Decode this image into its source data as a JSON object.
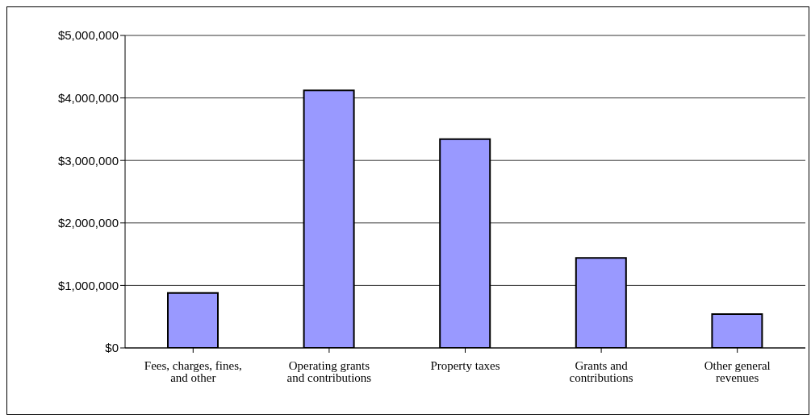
{
  "chart_data": {
    "type": "bar",
    "categories": [
      "Fees, charges, fines, and other",
      "Operating grants and contributions",
      "Property taxes",
      "Grants and contributions",
      "Other general revenues"
    ],
    "values": [
      880000,
      4120000,
      3340000,
      1440000,
      540000
    ],
    "color": "#9999ff",
    "ylim": [
      0,
      5000000
    ],
    "yticks": [
      {
        "value": 0,
        "label": "$0"
      },
      {
        "value": 1000000,
        "label": "$1,000,000"
      },
      {
        "value": 2000000,
        "label": "$2,000,000"
      },
      {
        "value": 3000000,
        "label": "$3,000,000"
      },
      {
        "value": 4000000,
        "label": "$4,000,000"
      },
      {
        "value": 5000000,
        "label": "$5,000,000"
      }
    ],
    "grid": "y",
    "legend": false
  }
}
